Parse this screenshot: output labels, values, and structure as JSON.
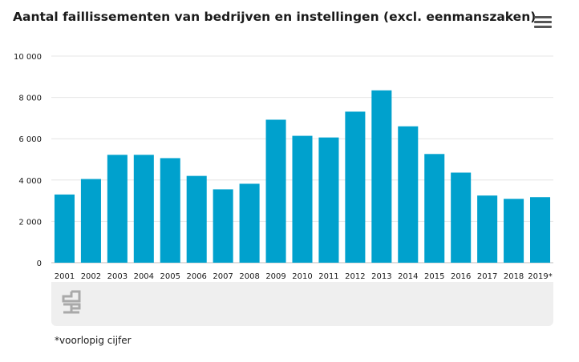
{
  "chart_data": {
    "type": "bar",
    "title": "Aantal faillissementen van bedrijven en instellingen (excl. eenmanszaken)",
    "categories": [
      "2001",
      "2002",
      "2003",
      "2004",
      "2005",
      "2006",
      "2007",
      "2008",
      "2009",
      "2010",
      "2011",
      "2012",
      "2013",
      "2014",
      "2015",
      "2016",
      "2017",
      "2018",
      "2019*"
    ],
    "values": [
      3300,
      4050,
      5220,
      5220,
      5060,
      4200,
      3550,
      3820,
      6920,
      6140,
      6060,
      7310,
      8340,
      6600,
      5260,
      4360,
      3250,
      3090,
      3170
    ],
    "ylim": [
      0,
      10000
    ],
    "yticks": [
      0,
      2000,
      4000,
      6000,
      8000,
      10000
    ],
    "ytick_labels": [
      "0",
      "2 000",
      "4 000",
      "6 000",
      "8 000",
      "10 000"
    ],
    "xlabel": "",
    "ylabel": "",
    "grid": true,
    "bar_color": "#00a1cd"
  },
  "footnote": "*voorlopig cijfer",
  "icons": {
    "menu": "hamburger-icon",
    "logo": "cbs-logo-icon"
  }
}
